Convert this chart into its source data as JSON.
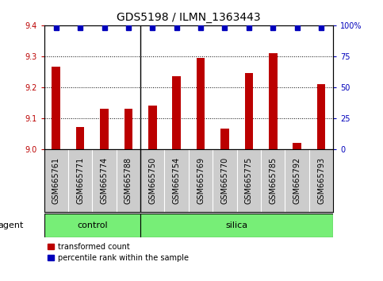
{
  "title": "GDS5198 / ILMN_1363443",
  "samples": [
    "GSM665761",
    "GSM665771",
    "GSM665774",
    "GSM665788",
    "GSM665750",
    "GSM665754",
    "GSM665769",
    "GSM665770",
    "GSM665775",
    "GSM665785",
    "GSM665792",
    "GSM665793"
  ],
  "bar_values": [
    9.265,
    9.07,
    9.13,
    9.13,
    9.14,
    9.235,
    9.295,
    9.065,
    9.245,
    9.31,
    9.02,
    9.21
  ],
  "pct_rank": [
    98,
    98,
    98,
    98,
    98,
    98,
    98,
    98,
    98,
    98,
    98,
    98
  ],
  "bar_color": "#bb0000",
  "percentile_color": "#0000bb",
  "ylim_left": [
    9.0,
    9.4
  ],
  "ylim_right": [
    0,
    100
  ],
  "yticks_left": [
    9.0,
    9.1,
    9.2,
    9.3,
    9.4
  ],
  "yticks_right": [
    0,
    25,
    50,
    75,
    100
  ],
  "ytick_labels_right": [
    "0",
    "25",
    "50",
    "75",
    "100%"
  ],
  "grid_lines": [
    9.1,
    9.2,
    9.3
  ],
  "control_count": 4,
  "silica_count": 8,
  "control_label": "control",
  "silica_label": "silica",
  "agent_label": "agent",
  "legend_bar_label": "transformed count",
  "legend_dot_label": "percentile rank within the sample",
  "green_color": "#77ee77",
  "gray_color": "#cccccc",
  "title_fontsize": 10,
  "tick_fontsize": 7,
  "label_fontsize": 8,
  "bar_width": 0.35
}
